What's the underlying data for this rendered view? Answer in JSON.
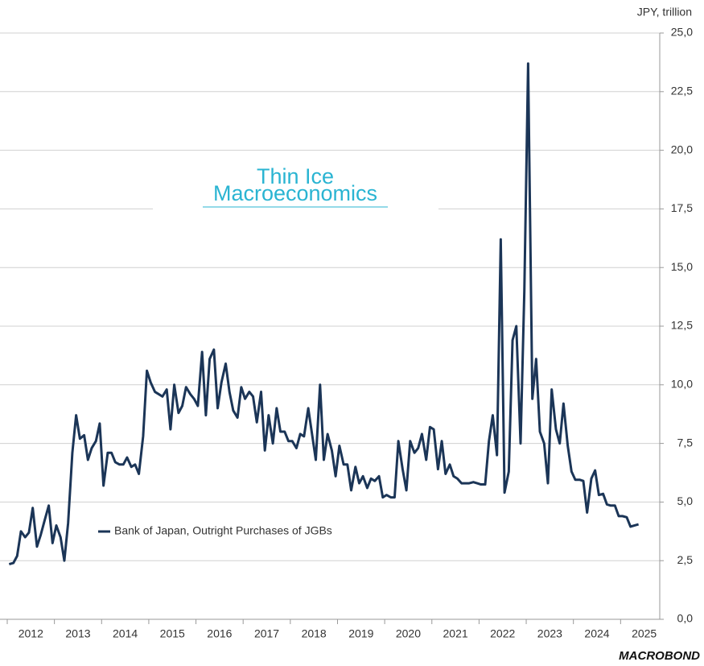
{
  "chart_data": {
    "type": "line",
    "y_label": "JPY, trillion",
    "watermark": [
      "Thin Ice",
      "Macroeconomics"
    ],
    "source": "MACROBOND",
    "x": [
      2012.04,
      2012.13,
      2012.21,
      2012.29,
      2012.38,
      2012.46,
      2012.54,
      2012.63,
      2012.71,
      2012.79,
      2012.88,
      2012.96,
      2013.04,
      2013.13,
      2013.21,
      2013.29,
      2013.38,
      2013.46,
      2013.54,
      2013.63,
      2013.71,
      2013.79,
      2013.88,
      2013.96,
      2014.04,
      2014.13,
      2014.21,
      2014.29,
      2014.38,
      2014.46,
      2014.54,
      2014.63,
      2014.71,
      2014.79,
      2014.88,
      2014.96,
      2015.04,
      2015.13,
      2015.21,
      2015.29,
      2015.38,
      2015.46,
      2015.54,
      2015.63,
      2015.71,
      2015.79,
      2015.88,
      2015.96,
      2016.04,
      2016.13,
      2016.21,
      2016.29,
      2016.38,
      2016.46,
      2016.54,
      2016.63,
      2016.71,
      2016.79,
      2016.88,
      2016.96,
      2017.04,
      2017.13,
      2017.21,
      2017.29,
      2017.38,
      2017.46,
      2017.54,
      2017.63,
      2017.71,
      2017.79,
      2017.88,
      2017.96,
      2018.04,
      2018.13,
      2018.21,
      2018.29,
      2018.38,
      2018.46,
      2018.54,
      2018.63,
      2018.71,
      2018.79,
      2018.88,
      2018.96,
      2019.04,
      2019.13,
      2019.21,
      2019.29,
      2019.38,
      2019.46,
      2019.54,
      2019.63,
      2019.71,
      2019.79,
      2019.88,
      2019.96,
      2020.04,
      2020.13,
      2020.21,
      2020.29,
      2020.38,
      2020.46,
      2020.54,
      2020.63,
      2020.71,
      2020.79,
      2020.88,
      2020.96,
      2021.04,
      2021.13,
      2021.21,
      2021.29,
      2021.38,
      2021.46,
      2021.54,
      2021.63,
      2021.71,
      2021.79,
      2021.88,
      2021.96,
      2022.04,
      2022.13,
      2022.21,
      2022.29,
      2022.38,
      2022.46,
      2022.54,
      2022.63,
      2022.71,
      2022.79,
      2022.88,
      2022.96,
      2023.04,
      2023.13,
      2023.21,
      2023.29,
      2023.38,
      2023.46,
      2023.54,
      2023.63,
      2023.71,
      2023.79,
      2023.88,
      2023.96,
      2024.04,
      2024.13,
      2024.21,
      2024.29,
      2024.38,
      2024.46,
      2024.54,
      2024.63,
      2024.71,
      2024.79,
      2024.88,
      2024.96,
      2025.04,
      2025.13,
      2025.21,
      2025.29,
      2025.38
    ],
    "series": [
      {
        "name": "Bank of Japan, Outright Purchases of JGBs",
        "color": "#1b3557",
        "values": [
          2.35,
          2.4,
          2.7,
          3.75,
          3.5,
          3.7,
          4.75,
          3.1,
          3.6,
          4.2,
          4.85,
          3.25,
          4.0,
          3.5,
          2.5,
          4.1,
          7.1,
          8.7,
          7.7,
          7.85,
          6.8,
          7.3,
          7.6,
          8.35,
          5.7,
          7.1,
          7.1,
          6.7,
          6.6,
          6.6,
          6.9,
          6.5,
          6.6,
          6.2,
          7.8,
          10.6,
          10.1,
          9.7,
          9.6,
          9.5,
          9.8,
          8.1,
          10.0,
          8.8,
          9.1,
          9.9,
          9.6,
          9.4,
          9.1,
          11.4,
          8.7,
          11.1,
          11.5,
          9.0,
          10.1,
          10.9,
          9.7,
          8.9,
          8.6,
          9.9,
          9.4,
          9.7,
          9.5,
          8.4,
          9.7,
          7.2,
          8.7,
          7.5,
          9.0,
          8.0,
          8.0,
          7.6,
          7.6,
          7.3,
          7.9,
          7.8,
          9.0,
          7.9,
          6.8,
          10.0,
          6.8,
          7.9,
          7.2,
          6.1,
          7.4,
          6.6,
          6.6,
          5.5,
          6.5,
          5.8,
          6.1,
          5.6,
          6.0,
          5.9,
          6.1,
          5.2,
          5.3,
          5.2,
          5.2,
          7.6,
          6.4,
          5.5,
          7.6,
          7.1,
          7.3,
          7.9,
          6.8,
          8.2,
          8.1,
          6.4,
          7.6,
          6.2,
          6.6,
          6.1,
          6.0,
          5.8,
          5.8,
          5.8,
          5.85,
          5.8,
          5.75,
          5.75,
          7.6,
          8.7,
          7.0,
          16.2,
          5.4,
          6.3,
          11.9,
          12.5,
          7.5,
          14.0,
          23.7,
          9.4,
          11.1,
          8.0,
          7.5,
          5.8,
          9.8,
          8.1,
          7.5,
          9.2,
          7.4,
          6.3,
          5.95,
          5.95,
          5.9,
          4.55,
          6.0,
          6.35,
          5.3,
          5.35,
          4.9,
          4.85,
          4.85,
          4.4,
          4.4,
          4.35,
          3.95,
          4.0,
          4.05
        ]
      }
    ],
    "xlim": [
      2012,
      2025.83
    ],
    "xticks": [
      2012,
      2013,
      2014,
      2015,
      2016,
      2017,
      2018,
      2019,
      2020,
      2021,
      2022,
      2023,
      2024,
      2025
    ],
    "ylim": [
      0,
      25
    ],
    "yticks": [
      {
        "value": 0,
        "label": "0,0"
      },
      {
        "value": 2.5,
        "label": "2,5"
      },
      {
        "value": 5,
        "label": "5,0"
      },
      {
        "value": 7.5,
        "label": "7,5"
      },
      {
        "value": 10,
        "label": "10,0"
      },
      {
        "value": 12.5,
        "label": "12,5"
      },
      {
        "value": 15,
        "label": "15,0"
      },
      {
        "value": 17.5,
        "label": "17,5"
      },
      {
        "value": 20,
        "label": "20,0"
      },
      {
        "value": 22.5,
        "label": "22,5"
      },
      {
        "value": 25,
        "label": "25,0"
      }
    ],
    "grid": true
  }
}
